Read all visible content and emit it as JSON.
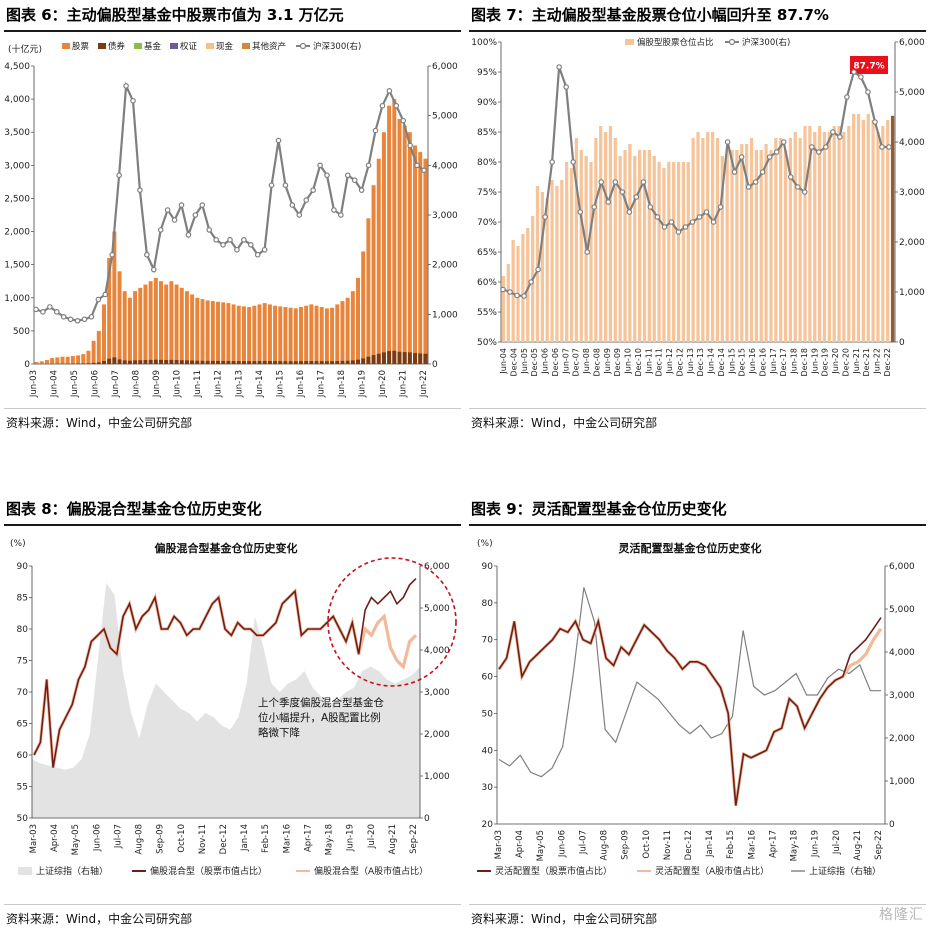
{
  "panels": [
    {
      "fig_title": "图表 6：主动偏股型基金中股票市值为 3.1 万亿元",
      "source": "资料来源：Wind，中金公司研究部"
    },
    {
      "fig_title": "图表 7：主动偏股型基金股票仓位小幅回升至 87.7%",
      "source": "资料来源：Wind，中金公司研究部"
    },
    {
      "fig_title": "图表 8：偏股混合型基金仓位历史变化",
      "source": "资料来源：Wind，中金公司研究部"
    },
    {
      "fig_title": "图表 9：灵活配置型基金仓位历史变化",
      "source": "资料来源：Wind，中金公司研究部"
    }
  ],
  "watermark": "格隆汇",
  "chart_data": [
    {
      "type": "bar",
      "stacked": true,
      "title": "",
      "ylabel_left": "(十亿元)",
      "ylim": [
        0,
        4500
      ],
      "y2lim": [
        0,
        6000
      ],
      "yticks": [
        "0",
        "500",
        "1,000",
        "1,500",
        "2,000",
        "2,500",
        "3,000",
        "3,500",
        "4,000",
        "4,500"
      ],
      "y2ticks": [
        "0",
        "1,000",
        "2,000",
        "3,000",
        "4,000",
        "5,000",
        "6,000"
      ],
      "xticks": [
        "Jun-03",
        "Jun-04",
        "Jun-05",
        "Jun-06",
        "Jun-07",
        "Jun-08",
        "Jun-09",
        "Jun-10",
        "Jun-11",
        "Jun-12",
        "Jun-13",
        "Jun-14",
        "Jun-15",
        "Jun-16",
        "Jun-17",
        "Jun-18",
        "Jun-19",
        "Jun-20",
        "Jun-21",
        "Jun-22"
      ],
      "xtick_extra": "Sep-22",
      "legend": [
        "股票",
        "债券",
        "基金",
        "权证",
        "现金",
        "其他资产",
        "沪深300(右)"
      ],
      "colors": {
        "stock": "#e8853a",
        "bond": "#7a3b12",
        "fund": "#8dbb4a",
        "warrant": "#6e5a9c",
        "cash": "#f5c08e",
        "other": "#d4863f",
        "index": "#7f7f7f"
      },
      "stock_values": [
        30,
        40,
        60,
        90,
        100,
        110,
        110,
        120,
        130,
        150,
        200,
        350,
        500,
        900,
        1600,
        2000,
        1400,
        1100,
        1000,
        1100,
        1150,
        1200,
        1250,
        1300,
        1250,
        1200,
        1250,
        1200,
        1150,
        1100,
        1050,
        1000,
        980,
        960,
        950,
        940,
        930,
        920,
        900,
        880,
        870,
        860,
        880,
        900,
        920,
        900,
        880,
        870,
        860,
        850,
        840,
        860,
        880,
        900,
        880,
        860,
        840,
        850,
        900,
        950,
        1000,
        1100,
        1300,
        1700,
        2200,
        2700,
        3100,
        3500,
        3900,
        4000,
        3700,
        3600,
        3500,
        3300,
        3200,
        3100
      ],
      "index_values": [
        1100,
        1050,
        1150,
        1050,
        950,
        900,
        870,
        900,
        950,
        1300,
        1400,
        2200,
        3800,
        5600,
        5300,
        3500,
        2200,
        1900,
        2700,
        3100,
        2900,
        3200,
        2600,
        3000,
        3200,
        2700,
        2500,
        2400,
        2500,
        2300,
        2500,
        2400,
        2200,
        2300,
        3600,
        4500,
        3600,
        3200,
        3000,
        3300,
        3500,
        4000,
        3800,
        3100,
        3000,
        3800,
        3700,
        3500,
        4000,
        4700,
        5200,
        5500,
        5200,
        4900,
        4400,
        4000,
        3900
      ],
      "index_x": [
        0,
        1,
        2,
        3,
        4,
        5,
        6,
        7,
        8,
        9,
        10,
        11,
        12,
        13,
        14,
        15,
        16,
        17,
        18,
        19,
        20,
        21,
        22,
        23,
        24,
        25,
        26,
        27,
        28,
        29,
        30,
        31,
        32,
        33,
        34,
        35,
        36,
        37,
        38,
        39,
        40,
        41,
        42,
        43,
        44,
        45,
        46,
        47,
        48,
        49,
        50,
        51,
        52,
        53,
        54,
        55,
        56
      ]
    },
    {
      "type": "bar",
      "title": "",
      "ylim": [
        50,
        100
      ],
      "y2lim": [
        0,
        6000
      ],
      "yticks": [
        "50%",
        "55%",
        "60%",
        "65%",
        "70%",
        "75%",
        "80%",
        "85%",
        "90%",
        "95%",
        "100%"
      ],
      "y2ticks": [
        "0",
        "1,000",
        "2,000",
        "3,000",
        "4,000",
        "5,000",
        "6,000"
      ],
      "xticks": [
        "Jun-04",
        "Dec-04",
        "Jun-05",
        "Dec-05",
        "Jun-06",
        "Dec-06",
        "Jun-07",
        "Dec-07",
        "Jun-08",
        "Dec-08",
        "Jun-09",
        "Dec-09",
        "Jun-10",
        "Dec-10",
        "Jun-11",
        "Dec-11",
        "Jun-12",
        "Dec-12",
        "Jun-13",
        "Dec-13",
        "Jun-14",
        "Dec-14",
        "Jun-15",
        "Dec-15",
        "Jun-16",
        "Dec-16",
        "Jun-17",
        "Dec-17",
        "Jun-18",
        "Dec-18",
        "Jun-19",
        "Dec-19",
        "Jun-20",
        "Dec-20",
        "Jun-21",
        "Dec-21",
        "Jun-22",
        "Dec-22"
      ],
      "legend": [
        "偏股型股票仓位占比",
        "沪深300(右)"
      ],
      "annotation": "87.7%",
      "colors": {
        "bar": "#f6c49a",
        "last_bar": "#9b5a2a",
        "index": "#7f7f7f",
        "badge": "#e8101a"
      },
      "bar_values": [
        61,
        63,
        67,
        66,
        68,
        69,
        71,
        76,
        75,
        74,
        77,
        76,
        77,
        80,
        79,
        84,
        82,
        81,
        80,
        84,
        86,
        85,
        86,
        84,
        81,
        82,
        83,
        81,
        82,
        82,
        82,
        81,
        80,
        79,
        80,
        80,
        80,
        80,
        80,
        84,
        85,
        84,
        85,
        85,
        84,
        81,
        82,
        82,
        82,
        83,
        83,
        84,
        82,
        82,
        83,
        82,
        84,
        84,
        82,
        84,
        85,
        84,
        86,
        86,
        85,
        86,
        85,
        85,
        86,
        86,
        85,
        86,
        88,
        88,
        87,
        88,
        87,
        85,
        86,
        87,
        87.7
      ],
      "index_values": [
        1050,
        1000,
        930,
        920,
        1200,
        1450,
        2500,
        3600,
        5500,
        5100,
        3600,
        2600,
        1800,
        2700,
        3200,
        2800,
        3200,
        3000,
        2600,
        2900,
        3200,
        2700,
        2500,
        2300,
        2400,
        2200,
        2300,
        2400,
        2500,
        2600,
        2400,
        2700,
        4000,
        3400,
        3700,
        3100,
        3200,
        3400,
        3700,
        3800,
        4000,
        3300,
        3100,
        3000,
        3900,
        3800,
        3900,
        4200,
        4100,
        4900,
        5400,
        5300,
        5000,
        4400,
        3900,
        3900
      ],
      "index_x": [
        0,
        1,
        2,
        3,
        4,
        5,
        6,
        7,
        8,
        9,
        10,
        11,
        12,
        13,
        14,
        15,
        16,
        17,
        18,
        19,
        20,
        21,
        22,
        23,
        24,
        25,
        26,
        27,
        28,
        29,
        30,
        31,
        32,
        33,
        34,
        35,
        36,
        37,
        38,
        39,
        40,
        41,
        42,
        43,
        44,
        45,
        46,
        47,
        48,
        49,
        50,
        51,
        52,
        53,
        54,
        55
      ]
    },
    {
      "type": "line",
      "title": "偏股混合型基金仓位历史变化",
      "ylabel_left": "(%)",
      "ylim": [
        50,
        90
      ],
      "y2lim": [
        0,
        6000
      ],
      "yticks": [
        "50",
        "55",
        "60",
        "65",
        "70",
        "75",
        "80",
        "85",
        "90"
      ],
      "y2ticks": [
        "0",
        "1,000",
        "2,000",
        "3,000",
        "4,000",
        "5,000",
        "6,000"
      ],
      "xticks": [
        "Mar-03",
        "Apr-04",
        "May-05",
        "Jun-06",
        "Jul-07",
        "Aug-08",
        "Sep-09",
        "Oct-10",
        "Nov-11",
        "Dec-12",
        "Jan-14",
        "Feb-15",
        "Mar-16",
        "Apr-17",
        "May-18",
        "Jun-19",
        "Jul-20",
        "Aug-21",
        "Sep-22"
      ],
      "legend": [
        "上证综指（右轴）",
        "偏股混合型（股票市值占比）",
        "偏股混合型（A股市值占比）"
      ],
      "annotation": "上个季度偏股混合型基金仓位小幅提升，A股配置比例略微下降",
      "colors": {
        "area": "#e3e3e3",
        "stock_line": "#6b1f1a",
        "a_line": "#f2b99a",
        "circle": "#c8101a"
      },
      "stock_pct": [
        60,
        62,
        72,
        58,
        64,
        66,
        68,
        72,
        74,
        78,
        79,
        80,
        77,
        76,
        82,
        84,
        80,
        82,
        83,
        85,
        80,
        80,
        82,
        81,
        79,
        80,
        80,
        82,
        84,
        85,
        80,
        79,
        81,
        80,
        80,
        79,
        79,
        80,
        81,
        84,
        85,
        86,
        79,
        80,
        80,
        80,
        81,
        82,
        80,
        78,
        81,
        76,
        83,
        85,
        84,
        85,
        86,
        84,
        85,
        87,
        88
      ],
      "a_pct": [
        60,
        62,
        72,
        58,
        64,
        66,
        68,
        72,
        74,
        78,
        79,
        80,
        77,
        76,
        82,
        84,
        80,
        82,
        83,
        85,
        80,
        80,
        82,
        81,
        79,
        80,
        80,
        82,
        84,
        85,
        80,
        79,
        81,
        80,
        80,
        79,
        79,
        80,
        81,
        84,
        85,
        86,
        79,
        80,
        80,
        80,
        81,
        82,
        80,
        78,
        81,
        76,
        80,
        79,
        81,
        82,
        77,
        75,
        74,
        78,
        79
      ],
      "index_values": [
        1400,
        1300,
        1250,
        1200,
        1150,
        1200,
        1400,
        2000,
        3800,
        5600,
        5300,
        3500,
        2500,
        1900,
        2700,
        3200,
        3000,
        2800,
        2600,
        2500,
        2300,
        2500,
        2400,
        2200,
        2100,
        2400,
        3200,
        4800,
        4100,
        3200,
        3000,
        3200,
        3300,
        3500,
        3100,
        2900,
        2700,
        2800,
        3000,
        3100,
        3500,
        3600,
        3500,
        3300,
        3200,
        3300,
        3400,
        3600
      ],
      "index_x": [
        0,
        1,
        2,
        3,
        4,
        5,
        6,
        7,
        8,
        9,
        10,
        11,
        12,
        13,
        14,
        15,
        16,
        17,
        18,
        19,
        20,
        21,
        22,
        23,
        24,
        25,
        26,
        27,
        28,
        29,
        30,
        31,
        32,
        33,
        34,
        35,
        36,
        37,
        38,
        39,
        40,
        41,
        42,
        43,
        44,
        45,
        46,
        47
      ]
    },
    {
      "type": "line",
      "title": "灵活配置型基金仓位历史变化",
      "ylabel_left": "(%)",
      "ylim": [
        20,
        90
      ],
      "y2lim": [
        0,
        6000
      ],
      "yticks": [
        "20",
        "30",
        "40",
        "50",
        "60",
        "70",
        "80",
        "90"
      ],
      "y2ticks": [
        "0",
        "1,000",
        "2,000",
        "3,000",
        "4,000",
        "5,000",
        "6,000"
      ],
      "xticks": [
        "Mar-03",
        "Apr-04",
        "May-05",
        "Jun-06",
        "Jul-07",
        "Aug-08",
        "Sep-09",
        "Oct-10",
        "Nov-11",
        "Dec-12",
        "Jan-14",
        "Feb-15",
        "Mar-16",
        "Apr-17",
        "May-18",
        "Jun-19",
        "Jul-20",
        "Aug-21",
        "Sep-22"
      ],
      "legend": [
        "灵活配置型（股票市值占比）",
        "灵活配置型（A股市值占比）",
        "上证综指（右轴）"
      ],
      "colors": {
        "stock_line": "#6b1f1a",
        "a_line": "#f2b99a",
        "index": "#7f7f7f"
      },
      "stock_pct": [
        62,
        65,
        75,
        60,
        64,
        66,
        68,
        70,
        73,
        72,
        75,
        70,
        69,
        75,
        65,
        63,
        68,
        66,
        70,
        74,
        72,
        70,
        67,
        65,
        62,
        64,
        64,
        63,
        60,
        57,
        50,
        25,
        39,
        38,
        39,
        40,
        45,
        46,
        54,
        52,
        46,
        50,
        54,
        57,
        59,
        60,
        66,
        68,
        70,
        73,
        76
      ],
      "a_pct": [
        62,
        65,
        75,
        60,
        64,
        66,
        68,
        70,
        73,
        72,
        75,
        70,
        69,
        75,
        65,
        63,
        68,
        66,
        70,
        74,
        72,
        70,
        67,
        65,
        62,
        64,
        64,
        63,
        60,
        57,
        50,
        25,
        39,
        38,
        39,
        40,
        45,
        46,
        54,
        52,
        46,
        50,
        54,
        57,
        59,
        60,
        63,
        64,
        66,
        70,
        73
      ],
      "index_values": [
        1500,
        1350,
        1600,
        1200,
        1100,
        1300,
        1800,
        3500,
        5500,
        4700,
        2200,
        1900,
        2600,
        3300,
        3100,
        2900,
        2600,
        2300,
        2100,
        2300,
        2000,
        2100,
        2500,
        4500,
        3200,
        3000,
        3100,
        3300,
        3500,
        3000,
        3000,
        3400,
        3600,
        3500,
        3700,
        3100,
        3100
      ],
      "index_x": [
        0,
        1,
        2,
        3,
        4,
        5,
        6,
        7,
        8,
        9,
        10,
        11,
        12,
        13,
        14,
        15,
        16,
        17,
        18,
        19,
        20,
        21,
        22,
        23,
        24,
        25,
        26,
        27,
        28,
        29,
        30,
        31,
        32,
        33,
        34,
        35,
        36
      ]
    }
  ]
}
